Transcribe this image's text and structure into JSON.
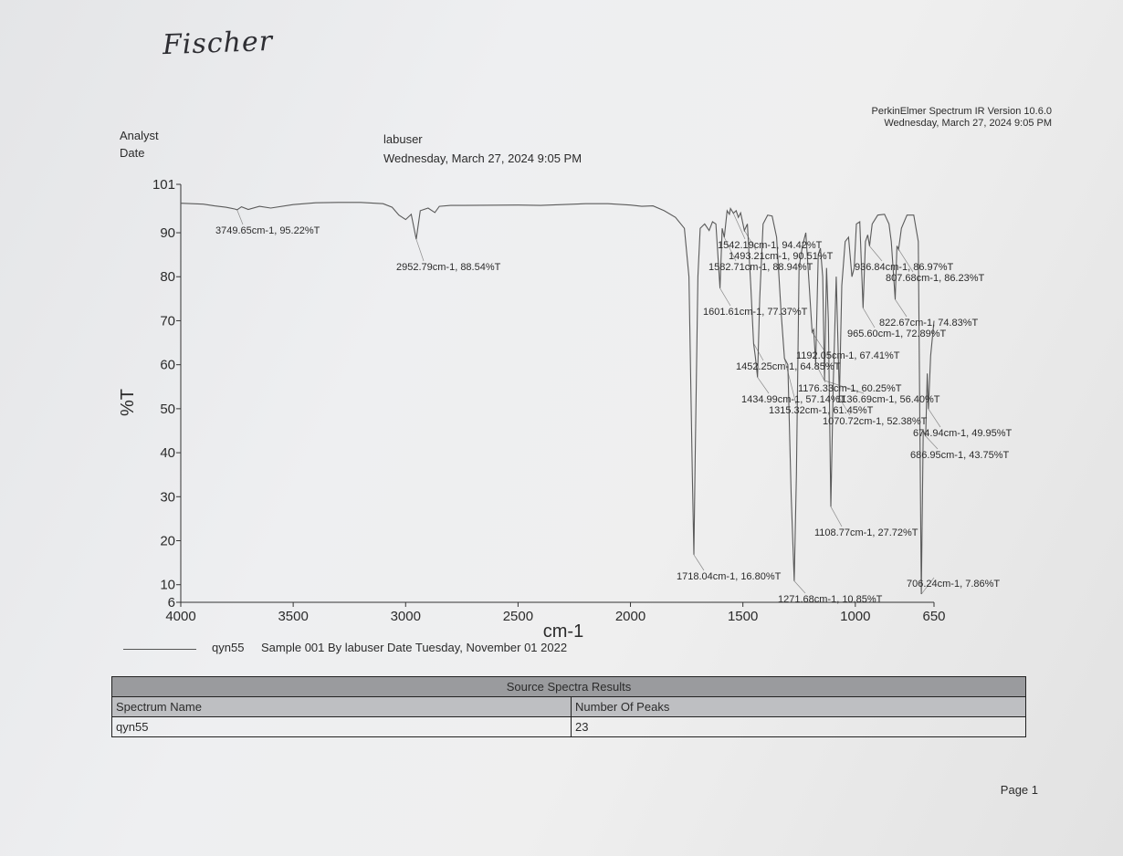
{
  "handwriting": "Fischer",
  "header": {
    "software": "PerkinElmer Spectrum IR Version 10.6.0",
    "datetime": "Wednesday, March 27, 2024 9:05 PM",
    "analyst_label": "Analyst",
    "date_label": "Date",
    "analyst_value": "labuser",
    "date_value": "Wednesday, March 27, 2024 9:05 PM"
  },
  "chart_data": {
    "type": "line",
    "ylabel": "%T",
    "xlabel": "cm-1",
    "xlim": [
      4000,
      650
    ],
    "ylim": [
      6,
      101
    ],
    "xticks": [
      4000,
      3500,
      3000,
      2500,
      2000,
      1500,
      1000,
      650
    ],
    "yticks": [
      6,
      10,
      20,
      30,
      40,
      50,
      60,
      70,
      80,
      90,
      101
    ],
    "series": [
      {
        "name": "qyn55",
        "points": [
          [
            4000,
            96.7
          ],
          [
            3900,
            96.5
          ],
          [
            3850,
            96.1
          ],
          [
            3800,
            95.8
          ],
          [
            3760,
            95.4
          ],
          [
            3749.65,
            95.22
          ],
          [
            3730,
            95.9
          ],
          [
            3700,
            95.3
          ],
          [
            3650,
            96.0
          ],
          [
            3600,
            95.6
          ],
          [
            3500,
            96.4
          ],
          [
            3400,
            96.8
          ],
          [
            3300,
            96.9
          ],
          [
            3200,
            96.9
          ],
          [
            3100,
            96.6
          ],
          [
            3060,
            95.8
          ],
          [
            3030,
            94.0
          ],
          [
            3000,
            93.0
          ],
          [
            2975,
            94.2
          ],
          [
            2952.79,
            88.54
          ],
          [
            2935,
            95.0
          ],
          [
            2900,
            95.6
          ],
          [
            2870,
            94.6
          ],
          [
            2850,
            96.0
          ],
          [
            2800,
            96.2
          ],
          [
            2500,
            96.3
          ],
          [
            2400,
            96.2
          ],
          [
            2200,
            96.6
          ],
          [
            2100,
            96.6
          ],
          [
            2000,
            96.3
          ],
          [
            1950,
            96.0
          ],
          [
            1900,
            96.1
          ],
          [
            1850,
            95.0
          ],
          [
            1800,
            93.5
          ],
          [
            1760,
            91.0
          ],
          [
            1740,
            80.0
          ],
          [
            1725,
            35.0
          ],
          [
            1718.04,
            16.8
          ],
          [
            1712,
            40.0
          ],
          [
            1700,
            80.0
          ],
          [
            1690,
            91.0
          ],
          [
            1670,
            92.0
          ],
          [
            1650,
            90.5
          ],
          [
            1635,
            92.5
          ],
          [
            1620,
            92.0
          ],
          [
            1601.61,
            77.37
          ],
          [
            1592,
            91.0
          ],
          [
            1582.71,
            88.94
          ],
          [
            1570,
            95.0
          ],
          [
            1560,
            94.2
          ],
          [
            1555,
            95.5
          ],
          [
            1542.19,
            94.42
          ],
          [
            1530,
            95.0
          ],
          [
            1520,
            93.5
          ],
          [
            1510,
            94.5
          ],
          [
            1493.21,
            90.51
          ],
          [
            1480,
            92.0
          ],
          [
            1465,
            78.0
          ],
          [
            1452.25,
            64.85
          ],
          [
            1445,
            62.0
          ],
          [
            1434.99,
            57.14
          ],
          [
            1425,
            75.0
          ],
          [
            1410,
            92.0
          ],
          [
            1390,
            94.0
          ],
          [
            1370,
            93.8
          ],
          [
            1350,
            89.0
          ],
          [
            1330,
            72.0
          ],
          [
            1315.32,
            61.45
          ],
          [
            1300,
            60.0
          ],
          [
            1285,
            30.0
          ],
          [
            1271.68,
            10.85
          ],
          [
            1262,
            35.0
          ],
          [
            1250,
            82.0
          ],
          [
            1235,
            87.0
          ],
          [
            1220,
            90.0
          ],
          [
            1205,
            78.0
          ],
          [
            1192.05,
            67.41
          ],
          [
            1185,
            68.0
          ],
          [
            1176.33,
            60.25
          ],
          [
            1165,
            85.0
          ],
          [
            1155,
            86.5
          ],
          [
            1145,
            80.0
          ],
          [
            1136.69,
            56.4
          ],
          [
            1128,
            82.0
          ],
          [
            1120,
            70.0
          ],
          [
            1108.77,
            27.72
          ],
          [
            1098,
            56.0
          ],
          [
            1085,
            80.0
          ],
          [
            1070.72,
            52.38
          ],
          [
            1060,
            78.0
          ],
          [
            1045,
            88.0
          ],
          [
            1030,
            89.0
          ],
          [
            1015,
            80.0
          ],
          [
            1005,
            82.0
          ],
          [
            995,
            92.0
          ],
          [
            980,
            92.5
          ],
          [
            965.6,
            72.89
          ],
          [
            955,
            88.0
          ],
          [
            945,
            89.5
          ],
          [
            936.84,
            86.97
          ],
          [
            925,
            92.0
          ],
          [
            900,
            94.0
          ],
          [
            870,
            94.2
          ],
          [
            850,
            92.0
          ],
          [
            840,
            88.0
          ],
          [
            822.67,
            74.83
          ],
          [
            815,
            87.0
          ],
          [
            807.68,
            86.23
          ],
          [
            795,
            91.0
          ],
          [
            770,
            94.0
          ],
          [
            740,
            94.0
          ],
          [
            720,
            88.0
          ],
          [
            706.24,
            7.86
          ],
          [
            698,
            45.0
          ],
          [
            686.95,
            43.75
          ],
          [
            680,
            58.0
          ],
          [
            674.94,
            49.95
          ],
          [
            665,
            62.0
          ],
          [
            650,
            70.0
          ]
        ]
      }
    ],
    "annotations": [
      {
        "x": 3749.65,
        "y": 95.22,
        "label": "3749.65cm-1, 95.22%T"
      },
      {
        "x": 2952.79,
        "y": 88.54,
        "label": "2952.79cm-1, 88.54%T"
      },
      {
        "x": 1542.19,
        "y": 94.42,
        "label": "1542.19cm-1, 94.42%T"
      },
      {
        "x": 1493.21,
        "y": 90.51,
        "label": "1493.21cm-1, 90.51%T"
      },
      {
        "x": 1582.71,
        "y": 88.94,
        "label": "1582.71cm-1, 88.94%T"
      },
      {
        "x": 936.84,
        "y": 86.97,
        "label": "936.84cm-1, 86.97%T"
      },
      {
        "x": 807.68,
        "y": 86.23,
        "label": "807.68cm-1, 86.23%T"
      },
      {
        "x": 1601.61,
        "y": 77.37,
        "label": "1601.61cm-1, 77.37%T"
      },
      {
        "x": 822.67,
        "y": 74.83,
        "label": "822.67cm-1, 74.83%T"
      },
      {
        "x": 965.6,
        "y": 72.89,
        "label": "965.60cm-1, 72.89%T"
      },
      {
        "x": 1192.05,
        "y": 67.41,
        "label": "1192.05cm-1, 67.41%T"
      },
      {
        "x": 1452.25,
        "y": 64.85,
        "label": "1452.25cm-1, 64.85%T"
      },
      {
        "x": 1176.33,
        "y": 60.25,
        "label": "1176.33cm-1, 60.25%T"
      },
      {
        "x": 1434.99,
        "y": 57.14,
        "label": "1434.99cm-1, 57.14%T"
      },
      {
        "x": 1136.69,
        "y": 56.4,
        "label": "1136.69cm-1, 56.40%T"
      },
      {
        "x": 1315.32,
        "y": 61.45,
        "label": "1315.32cm-1, 61.45%T"
      },
      {
        "x": 1070.72,
        "y": 52.38,
        "label": "1070.72cm-1, 52.38%T"
      },
      {
        "x": 674.94,
        "y": 49.95,
        "label": "674.94cm-1, 49.95%T"
      },
      {
        "x": 686.95,
        "y": 43.75,
        "label": "686.95cm-1, 43.75%T"
      },
      {
        "x": 1108.77,
        "y": 27.72,
        "label": "1108.77cm-1, 27.72%T"
      },
      {
        "x": 1718.04,
        "y": 16.8,
        "label": "1718.04cm-1, 16.80%T"
      },
      {
        "x": 706.24,
        "y": 7.86,
        "label": "706.24cm-1, 7.86%T"
      },
      {
        "x": 1271.68,
        "y": 10.85,
        "label": "1271.68cm-1, 10.85%T"
      }
    ]
  },
  "legend": {
    "sample_name": "qyn55",
    "description": "Sample 001 By labuser Date Tuesday, November 01 2022"
  },
  "results_table": {
    "title": "Source Spectra Results",
    "columns": [
      "Spectrum Name",
      "Number Of Peaks"
    ],
    "rows": [
      [
        "qyn55",
        "23"
      ]
    ]
  },
  "page_label": "Page 1"
}
